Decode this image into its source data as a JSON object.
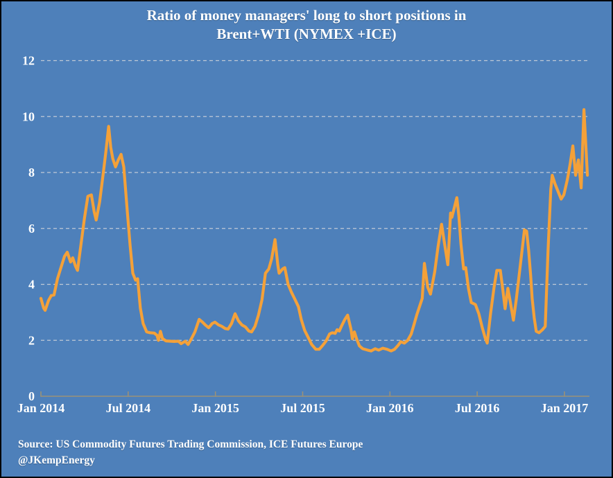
{
  "title": {
    "line1": "Ratio of money managers' long to short positions in",
    "line2": "Brent+WTI (NYMEX +ICE)"
  },
  "source": {
    "line1": "Source: US Commodity Futures Trading Commission, ICE Futures Europe",
    "line2": "@JKempEnergy"
  },
  "colors": {
    "background": "#4E80BA",
    "border": "#000000",
    "line": "#F4A139",
    "grid": "#CDD2DA",
    "axis": "#9A9178",
    "text": "#FFFFFF"
  },
  "chart_data": {
    "type": "line",
    "title": "Ratio of money managers' long to short positions in Brent+WTI (NYMEX +ICE)",
    "xlabel": "",
    "ylabel": "",
    "x_unit": "months since Jan 2014",
    "x_range": [
      0,
      37.7
    ],
    "ylim": [
      0,
      12
    ],
    "grid": "dashed horizontal",
    "legend": "none",
    "x_ticks": {
      "months": [
        0,
        6,
        12,
        18,
        24,
        30,
        36
      ],
      "labels": [
        "Jan 2014",
        "Jul 2014",
        "Jan 2015",
        "Jul 2015",
        "Jan 2016",
        "Jul 2016",
        "Jan 2017"
      ]
    },
    "y_ticks": [
      0,
      2,
      4,
      6,
      8,
      10,
      12
    ],
    "series": [
      {
        "name": "Ratio of money managers' long to short positions in Brent+WTI",
        "color": "#F4A139",
        "points": [
          [
            0,
            3.5
          ],
          [
            0.19,
            3.15
          ],
          [
            0.29,
            3.07
          ],
          [
            0.52,
            3.42
          ],
          [
            0.71,
            3.6
          ],
          [
            0.9,
            3.62
          ],
          [
            1.14,
            4.2
          ],
          [
            1.38,
            4.6
          ],
          [
            1.62,
            5.0
          ],
          [
            1.81,
            5.15
          ],
          [
            2.04,
            4.8
          ],
          [
            2.19,
            4.95
          ],
          [
            2.38,
            4.65
          ],
          [
            2.52,
            4.5
          ],
          [
            2.76,
            5.45
          ],
          [
            2.99,
            6.35
          ],
          [
            3.23,
            7.15
          ],
          [
            3.47,
            7.2
          ],
          [
            3.66,
            6.6
          ],
          [
            3.8,
            6.3
          ],
          [
            4.04,
            6.95
          ],
          [
            4.28,
            7.95
          ],
          [
            4.47,
            8.75
          ],
          [
            4.66,
            9.65
          ],
          [
            4.8,
            8.9
          ],
          [
            4.94,
            8.5
          ],
          [
            5.13,
            8.2
          ],
          [
            5.32,
            8.45
          ],
          [
            5.51,
            8.65
          ],
          [
            5.7,
            8.2
          ],
          [
            5.94,
            6.6
          ],
          [
            6.13,
            5.4
          ],
          [
            6.32,
            4.4
          ],
          [
            6.51,
            4.15
          ],
          [
            6.65,
            4.2
          ],
          [
            6.84,
            3.15
          ],
          [
            7.03,
            2.6
          ],
          [
            7.27,
            2.3
          ],
          [
            7.51,
            2.27
          ],
          [
            7.79,
            2.26
          ],
          [
            7.98,
            2.18
          ],
          [
            8.08,
            2.0
          ],
          [
            8.22,
            2.32
          ],
          [
            8.36,
            2.06
          ],
          [
            8.6,
            1.98
          ],
          [
            8.88,
            1.97
          ],
          [
            9.17,
            1.96
          ],
          [
            9.45,
            1.97
          ],
          [
            9.64,
            1.88
          ],
          [
            9.93,
            1.97
          ],
          [
            10.12,
            1.85
          ],
          [
            10.35,
            2.06
          ],
          [
            10.59,
            2.3
          ],
          [
            10.88,
            2.75
          ],
          [
            11.11,
            2.65
          ],
          [
            11.3,
            2.55
          ],
          [
            11.54,
            2.45
          ],
          [
            11.78,
            2.6
          ],
          [
            11.97,
            2.65
          ],
          [
            12.21,
            2.55
          ],
          [
            12.44,
            2.5
          ],
          [
            12.68,
            2.42
          ],
          [
            12.87,
            2.4
          ],
          [
            13.11,
            2.6
          ],
          [
            13.35,
            2.95
          ],
          [
            13.58,
            2.7
          ],
          [
            13.82,
            2.55
          ],
          [
            14.06,
            2.48
          ],
          [
            14.3,
            2.33
          ],
          [
            14.49,
            2.3
          ],
          [
            14.72,
            2.5
          ],
          [
            14.96,
            2.9
          ],
          [
            15.2,
            3.45
          ],
          [
            15.44,
            4.4
          ],
          [
            15.67,
            4.55
          ],
          [
            15.86,
            4.9
          ],
          [
            16.1,
            5.6
          ],
          [
            16.29,
            4.7
          ],
          [
            16.38,
            4.4
          ],
          [
            16.62,
            4.55
          ],
          [
            16.77,
            4.6
          ],
          [
            17.0,
            4.0
          ],
          [
            17.24,
            3.7
          ],
          [
            17.48,
            3.45
          ],
          [
            17.71,
            3.2
          ],
          [
            17.9,
            2.75
          ],
          [
            18.14,
            2.35
          ],
          [
            18.38,
            2.1
          ],
          [
            18.62,
            1.85
          ],
          [
            18.9,
            1.68
          ],
          [
            19.14,
            1.68
          ],
          [
            19.38,
            1.82
          ],
          [
            19.61,
            1.98
          ],
          [
            19.85,
            2.23
          ],
          [
            20.04,
            2.27
          ],
          [
            20.23,
            2.25
          ],
          [
            20.37,
            2.38
          ],
          [
            20.52,
            2.33
          ],
          [
            20.66,
            2.5
          ],
          [
            20.9,
            2.75
          ],
          [
            21.09,
            2.9
          ],
          [
            21.32,
            2.4
          ],
          [
            21.42,
            2.05
          ],
          [
            21.56,
            2.3
          ],
          [
            21.71,
            2.05
          ],
          [
            21.9,
            1.8
          ],
          [
            22.13,
            1.7
          ],
          [
            22.47,
            1.65
          ],
          [
            22.7,
            1.62
          ],
          [
            22.99,
            1.7
          ],
          [
            23.23,
            1.65
          ],
          [
            23.51,
            1.72
          ],
          [
            23.8,
            1.68
          ],
          [
            24.08,
            1.62
          ],
          [
            24.32,
            1.68
          ],
          [
            24.56,
            1.82
          ],
          [
            24.75,
            1.95
          ],
          [
            24.99,
            1.9
          ],
          [
            25.22,
            2.0
          ],
          [
            25.46,
            2.22
          ],
          [
            25.65,
            2.55
          ],
          [
            25.84,
            2.9
          ],
          [
            26.03,
            3.2
          ],
          [
            26.22,
            3.5
          ],
          [
            26.37,
            4.75
          ],
          [
            26.6,
            3.9
          ],
          [
            26.79,
            3.65
          ],
          [
            27.08,
            4.45
          ],
          [
            27.31,
            5.35
          ],
          [
            27.55,
            6.15
          ],
          [
            27.74,
            5.5
          ],
          [
            27.98,
            4.7
          ],
          [
            28.17,
            6.55
          ],
          [
            28.26,
            6.4
          ],
          [
            28.6,
            7.1
          ],
          [
            28.74,
            6.45
          ],
          [
            28.88,
            5.45
          ],
          [
            29.07,
            4.55
          ],
          [
            29.21,
            4.6
          ],
          [
            29.4,
            3.85
          ],
          [
            29.59,
            3.35
          ],
          [
            29.88,
            3.28
          ],
          [
            30.11,
            2.95
          ],
          [
            30.35,
            2.45
          ],
          [
            30.54,
            2.1
          ],
          [
            30.69,
            1.9
          ],
          [
            30.92,
            2.95
          ],
          [
            31.16,
            3.9
          ],
          [
            31.35,
            4.5
          ],
          [
            31.59,
            4.5
          ],
          [
            31.73,
            3.95
          ],
          [
            31.92,
            3.13
          ],
          [
            32.11,
            3.86
          ],
          [
            32.3,
            3.3
          ],
          [
            32.49,
            2.72
          ],
          [
            32.68,
            3.44
          ],
          [
            32.87,
            4.25
          ],
          [
            33.06,
            5.1
          ],
          [
            33.25,
            5.95
          ],
          [
            33.4,
            5.9
          ],
          [
            33.54,
            5.2
          ],
          [
            33.68,
            4.3
          ],
          [
            33.78,
            3.5
          ],
          [
            33.92,
            2.8
          ],
          [
            34.06,
            2.32
          ],
          [
            34.25,
            2.27
          ],
          [
            34.49,
            2.38
          ],
          [
            34.68,
            2.5
          ],
          [
            34.87,
            5.2
          ],
          [
            35.06,
            7.4
          ],
          [
            35.16,
            7.9
          ],
          [
            35.35,
            7.6
          ],
          [
            35.54,
            7.35
          ],
          [
            35.77,
            7.05
          ],
          [
            35.96,
            7.2
          ],
          [
            36.2,
            7.75
          ],
          [
            36.39,
            8.3
          ],
          [
            36.58,
            8.95
          ],
          [
            36.77,
            7.9
          ],
          [
            36.96,
            8.45
          ],
          [
            37.15,
            7.45
          ],
          [
            37.34,
            10.25
          ],
          [
            37.58,
            7.9
          ]
        ]
      }
    ]
  }
}
